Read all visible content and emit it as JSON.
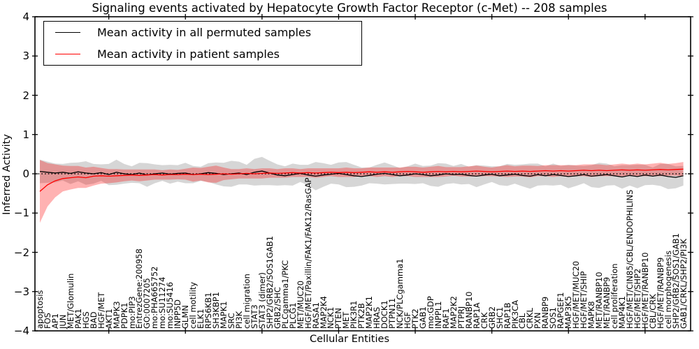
{
  "chart_data": {
    "type": "line",
    "title": "Signaling events activated by Hepatocyte Growth Factor Receptor (c-Met) -- 208 samples",
    "xlabel": "Cellular Entities",
    "ylabel": "Inferred Activity",
    "ylim": [
      -4,
      4
    ],
    "yticks": [
      {
        "label": "4",
        "value": 4
      },
      {
        "label": "3",
        "value": 3
      },
      {
        "label": "2",
        "value": 2
      },
      {
        "label": "1",
        "value": 1
      },
      {
        "label": "0",
        "value": 0
      },
      {
        "label": "−1",
        "value": -1
      },
      {
        "label": "−2",
        "value": -2
      },
      {
        "label": "−3",
        "value": -3
      },
      {
        "label": "−4",
        "value": -4
      }
    ],
    "top_tick_positions": [
      10,
      20,
      30,
      40,
      50,
      60,
      70,
      80
    ],
    "grid": false,
    "legend_position": "upper left",
    "categories": [
      "apoptosis",
      "FOS",
      "AP1",
      "JUN",
      "MET/Glomulin",
      "PAK1",
      "HGS",
      "BAD",
      "HGF/MET",
      "AKT1",
      "MAPK3",
      "PDPK1",
      "mo:PIP3",
      "EntrezGene:200958",
      "GO:0007205",
      "mo:PHA665752",
      "mo:SU11274",
      "mo:SU5416",
      "INPP5D",
      "GLMN",
      "cell motility",
      "ELK1",
      "RPS6KB1",
      "SH3KBP1",
      "MAPK1",
      "SRC",
      "PI3K",
      "cell migration",
      "STAT3",
      "STAT3 (dimer)",
      "SHP2/GRB2/SOS1GAB1",
      "GRB2/SHC",
      "PLCgamma1/PKC",
      "PLCG1",
      "MET/MUC20",
      "HGF/MET/Paxillin/FAK1/FAK12/RasGAP",
      "RASA1",
      "MAP2K4",
      "NCK1",
      "PTEN",
      "MET",
      "PIK3R1",
      "PTK2B",
      "MAP2K1",
      "HRAS",
      "DOCK1",
      "PTPN11",
      "NCK/PLCgamma1",
      "HGF",
      "PTK2",
      "GAB1",
      "mo:GDP",
      "INPPL1",
      "RAF1",
      "MAP2K2",
      "PTPRJ",
      "RANBP10",
      "RAP1A",
      "CRK",
      "GRB2",
      "SHC1",
      "RAP1B",
      "PIK3CA",
      "CBL",
      "CRKL",
      "PXN",
      "RANBP9",
      "SOS1",
      "RAPGEF1",
      "MAP3K5",
      "HGF/MET/MUC20",
      "HGF/MET/SHIP",
      "MAPK8",
      "MET/RANBP10",
      "MET/RANBP9",
      "cell proliferation",
      "MAP4K1",
      "HGF/MET/CIN85/CBL/ENDOPHILINS",
      "HGF/MET/SHP2",
      "HGF/MET/RANBP10",
      "CBL/CRK",
      "HGF/MET/RANBP9",
      "cell morphogenesis",
      "SHP2/GRB2/SOS1/GAB1",
      "GAB1/CRKL/SHP2/PI3K"
    ],
    "series": [
      {
        "name": "Mean activity in all permuted samples",
        "color": "#000000",
        "style": "solid",
        "values": [
          0.06,
          0.04,
          0.02,
          0.04,
          0.01,
          0.05,
          0.02,
          0.0,
          0.03,
          -0.02,
          0.04,
          0.0,
          -0.02,
          0.02,
          -0.03,
          0.0,
          0.02,
          -0.01,
          0.01,
          0.02,
          -0.02,
          0.0,
          0.03,
          0.01,
          -0.02,
          0.0,
          0.02,
          -0.02,
          0.04,
          0.07,
          0.02,
          -0.03,
          -0.05,
          -0.02,
          0.01,
          -0.03,
          -0.06,
          -0.03,
          -0.01,
          0.01,
          -0.02,
          -0.05,
          -0.07,
          -0.04,
          -0.01,
          0.01,
          -0.02,
          -0.05,
          -0.03,
          0.0,
          -0.02,
          -0.05,
          -0.03,
          0.0,
          -0.02,
          -0.01,
          -0.04,
          -0.06,
          -0.03,
          -0.01,
          -0.05,
          -0.03,
          -0.01,
          -0.04,
          -0.06,
          -0.02,
          -0.05,
          -0.02,
          -0.04,
          -0.07,
          -0.05,
          -0.02,
          -0.06,
          -0.04,
          -0.02,
          -0.05,
          -0.08,
          -0.04,
          -0.07,
          -0.03,
          -0.06,
          -0.03,
          -0.07,
          -0.09,
          -0.05
        ]
      },
      {
        "name": "Mean activity in patient samples",
        "color": "#ff0000",
        "style": "solid",
        "values": [
          -0.45,
          -0.28,
          -0.18,
          -0.12,
          -0.1,
          -0.08,
          -0.1,
          -0.06,
          -0.05,
          -0.06,
          -0.05,
          -0.04,
          -0.03,
          -0.04,
          -0.03,
          -0.02,
          -0.03,
          -0.02,
          -0.02,
          -0.01,
          -0.02,
          -0.01,
          -0.02,
          -0.01,
          0.0,
          -0.01,
          0.0,
          0.01,
          0.0,
          0.01,
          0.02,
          0.01,
          0.02,
          0.03,
          0.02,
          0.03,
          0.02,
          0.03,
          0.04,
          0.03,
          0.04,
          0.03,
          0.04,
          0.05,
          0.04,
          0.05,
          0.04,
          0.05,
          0.06,
          0.05,
          0.04,
          0.05,
          0.06,
          0.05,
          0.06,
          0.05,
          0.06,
          0.07,
          0.06,
          0.05,
          0.06,
          0.07,
          0.06,
          0.07,
          0.06,
          0.07,
          0.08,
          0.07,
          0.08,
          0.07,
          0.08,
          0.09,
          0.08,
          0.09,
          0.08,
          0.09,
          0.1,
          0.09,
          0.1,
          0.09,
          0.1,
          0.11,
          0.1,
          0.11,
          0.12
        ]
      }
    ],
    "bands": [
      {
        "name": "permuted samples std band",
        "center_series": 0,
        "color": "#999999",
        "opacity": 0.4,
        "halfwidths": [
          0.3,
          0.27,
          0.24,
          0.21,
          0.27,
          0.24,
          0.3,
          0.25,
          0.21,
          0.27,
          0.32,
          0.25,
          0.21,
          0.26,
          0.3,
          0.24,
          0.2,
          0.24,
          0.21,
          0.26,
          0.22,
          0.18,
          0.24,
          0.28,
          0.3,
          0.33,
          0.29,
          0.25,
          0.34,
          0.36,
          0.31,
          0.27,
          0.24,
          0.28,
          0.22,
          0.26,
          0.36,
          0.3,
          0.24,
          0.28,
          0.32,
          0.28,
          0.23,
          0.2,
          0.24,
          0.28,
          0.24,
          0.2,
          0.22,
          0.26,
          0.22,
          0.26,
          0.3,
          0.26,
          0.22,
          0.26,
          0.22,
          0.28,
          0.24,
          0.2,
          0.24,
          0.28,
          0.24,
          0.28,
          0.32,
          0.28,
          0.24,
          0.28,
          0.24,
          0.3,
          0.26,
          0.22,
          0.28,
          0.32,
          0.28,
          0.24,
          0.3,
          0.26,
          0.3,
          0.26,
          0.22,
          0.28,
          0.32,
          0.28,
          0.25
        ]
      },
      {
        "name": "patient samples std band",
        "center_series": 1,
        "color": "#ff0000",
        "opacity": 0.3,
        "halfwidths": [
          0.8,
          0.55,
          0.42,
          0.33,
          0.3,
          0.28,
          0.26,
          0.24,
          0.2,
          0.18,
          0.17,
          0.15,
          0.14,
          0.15,
          0.14,
          0.13,
          0.12,
          0.13,
          0.12,
          0.14,
          0.18,
          0.16,
          0.2,
          0.22,
          0.16,
          0.13,
          0.12,
          0.13,
          0.12,
          0.13,
          0.12,
          0.11,
          0.12,
          0.11,
          0.1,
          0.11,
          0.12,
          0.11,
          0.1,
          0.11,
          0.12,
          0.11,
          0.1,
          0.11,
          0.12,
          0.11,
          0.12,
          0.11,
          0.12,
          0.13,
          0.12,
          0.13,
          0.14,
          0.12,
          0.11,
          0.12,
          0.13,
          0.14,
          0.12,
          0.11,
          0.13,
          0.15,
          0.13,
          0.14,
          0.15,
          0.13,
          0.14,
          0.15,
          0.14,
          0.15,
          0.14,
          0.15,
          0.16,
          0.15,
          0.14,
          0.15,
          0.16,
          0.15,
          0.16,
          0.15,
          0.16,
          0.17,
          0.15,
          0.16,
          0.18
        ]
      }
    ],
    "zero_line": {
      "value": 0,
      "color": "#000000",
      "style": "dotted"
    }
  },
  "colors": {
    "frame": "#000000",
    "background": "#ffffff"
  }
}
